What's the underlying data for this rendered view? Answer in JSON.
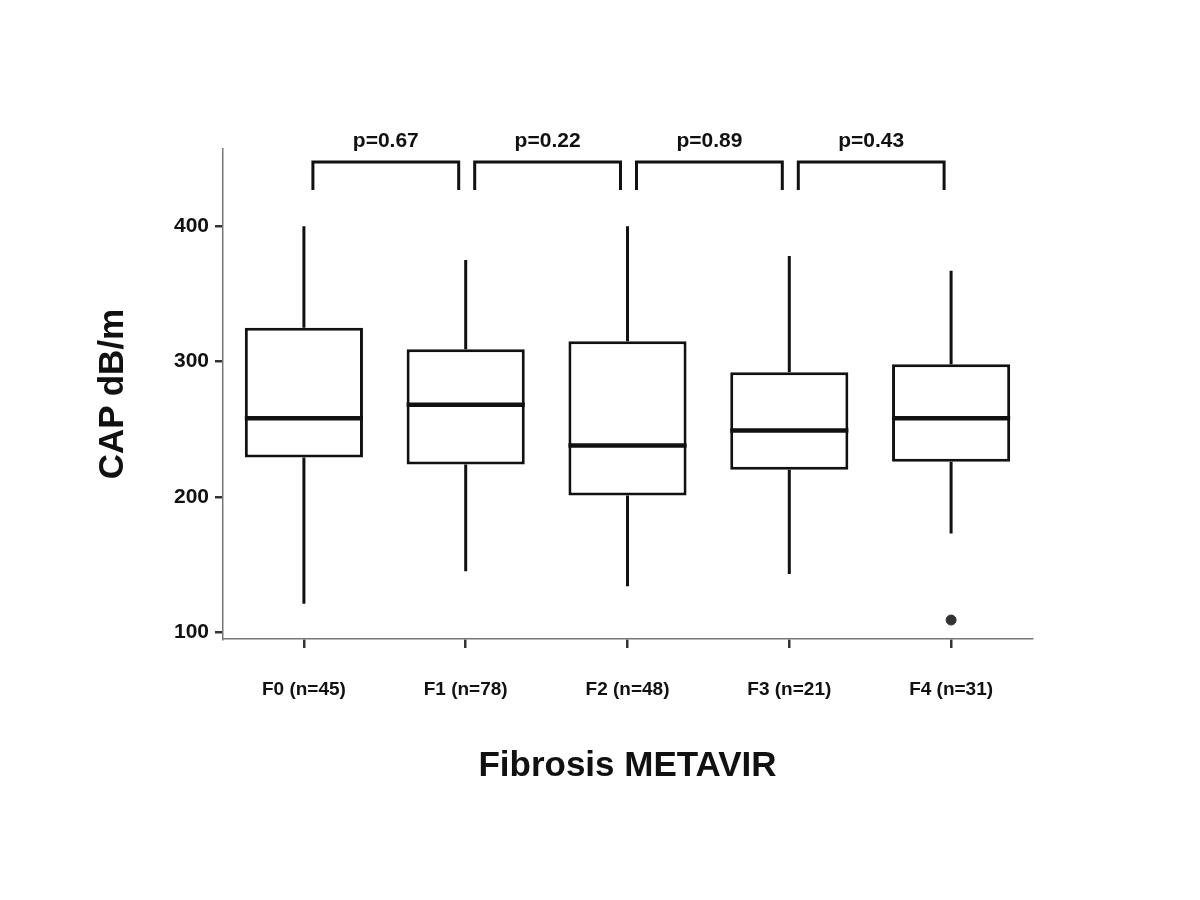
{
  "chart_data": {
    "type": "box",
    "xlabel": "Fibrosis METAVIR",
    "ylabel": "CAP dB/m",
    "categories": [
      "F0 (n=45)",
      "F1 (n=78)",
      "F2 (n=48)",
      "F3 (n=21)",
      "F4 (n=31)"
    ],
    "boxes": [
      {
        "low": 121,
        "q1": 229,
        "median": 258,
        "q3": 325,
        "high": 400
      },
      {
        "low": 145,
        "q1": 224,
        "median": 268,
        "q3": 309,
        "high": 375
      },
      {
        "low": 134,
        "q1": 201,
        "median": 238,
        "q3": 315,
        "high": 400
      },
      {
        "low": 143,
        "q1": 220,
        "median": 249,
        "q3": 292,
        "high": 378
      },
      {
        "low": 173,
        "q1": 226,
        "median": 258,
        "q3": 298,
        "high": 367,
        "outliers": [
          109
        ]
      }
    ],
    "ylim": [
      95,
      457
    ],
    "yticks": [
      100,
      200,
      300,
      400
    ],
    "annotations": [
      "p=0.67",
      "p=0.22",
      "p=0.89",
      "p=0.43"
    ]
  }
}
